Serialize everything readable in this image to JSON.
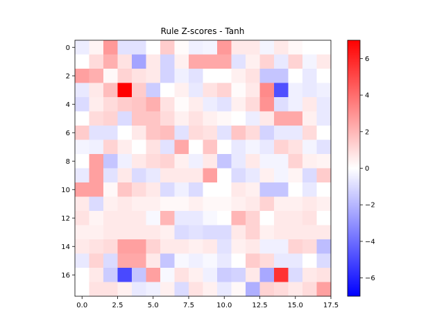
{
  "chart_data": {
    "type": "heatmap",
    "title": "Rule Z-scores - Tanh",
    "xlabel": "",
    "ylabel": "",
    "x_ticks": [
      "0.0",
      "2.5",
      "5.0",
      "7.5",
      "10.0",
      "12.5",
      "15.0",
      "17.5"
    ],
    "y_ticks": [
      "0",
      "2",
      "4",
      "6",
      "8",
      "10",
      "12",
      "14",
      "16"
    ],
    "colorbar_ticks": [
      "−6",
      "−4",
      "−2",
      "0",
      "2",
      "4",
      "6"
    ],
    "colorbar_range": [
      -7,
      7
    ],
    "colormap": "bwr",
    "grid": false,
    "colors": {
      "low": "#0000ff",
      "mid": "#ffffff",
      "high": "#ff0000"
    },
    "values": [
      [
        -0.5,
        0.3,
        2.8,
        -0.8,
        -0.8,
        0.0,
        1.4,
        0.1,
        -0.4,
        -0.3,
        2.8,
        0.6,
        0.6,
        -0.3,
        0.6,
        0.2,
        0.0,
        0.0
      ],
      [
        0.0,
        1.0,
        2.2,
        0.8,
        -2.5,
        0.6,
        -1.2,
        0.4,
        2.4,
        2.4,
        2.4,
        -0.8,
        0.4,
        1.2,
        -0.6,
        1.2,
        -0.3,
        0.6
      ],
      [
        2.6,
        2.2,
        0.2,
        1.2,
        0.8,
        0.6,
        -1.2,
        -0.4,
        -0.8,
        0.0,
        0.0,
        0.4,
        0.8,
        -1.6,
        -1.6,
        0.0,
        -0.6,
        0.0
      ],
      [
        -0.6,
        0.6,
        1.8,
        7.0,
        1.4,
        -1.4,
        0.0,
        0.4,
        -0.6,
        0.8,
        1.2,
        0.1,
        0.6,
        3.2,
        -4.8,
        -0.4,
        -0.6,
        -0.4
      ],
      [
        -1.0,
        0.5,
        1.0,
        1.4,
        1.6,
        2.2,
        0.8,
        0.1,
        0.5,
        -0.5,
        -0.8,
        0.4,
        1.0,
        3.0,
        -0.9,
        -0.4,
        0.6,
        -0.6
      ],
      [
        0.0,
        1.0,
        1.2,
        -1.0,
        1.6,
        1.6,
        1.0,
        0.4,
        0.8,
        0.4,
        0.2,
        0.0,
        -0.5,
        0.6,
        2.4,
        2.4,
        0.4,
        -0.6
      ],
      [
        1.4,
        -0.8,
        -0.8,
        0.0,
        0.6,
        1.6,
        1.8,
        -0.8,
        1.0,
        0.8,
        -0.8,
        1.6,
        1.0,
        -1.2,
        -0.6,
        -0.6,
        1.0,
        0.0
      ],
      [
        -0.3,
        -0.4,
        1.2,
        0.5,
        0.0,
        0.8,
        -0.8,
        2.4,
        0.0,
        1.6,
        0.0,
        -0.6,
        -0.3,
        -0.6,
        1.2,
        0.8,
        -0.3,
        -0.8
      ],
      [
        0.0,
        2.6,
        -1.6,
        -0.4,
        0.6,
        1.0,
        1.2,
        0.4,
        -0.4,
        0.6,
        -1.6,
        -0.6,
        0.6,
        -0.3,
        -0.3,
        1.2,
        0.4,
        0.3
      ],
      [
        -0.6,
        2.6,
        -0.8,
        0.6,
        -1.0,
        -0.6,
        0.6,
        0.6,
        0.6,
        2.6,
        0.0,
        -1.0,
        -0.6,
        0.4,
        -0.3,
        0.3,
        -1.0,
        1.4
      ],
      [
        2.6,
        2.6,
        0.2,
        1.6,
        1.0,
        0.6,
        -1.0,
        -0.4,
        -1.0,
        0.0,
        0.0,
        0.6,
        0.4,
        -1.6,
        -1.6,
        0.0,
        -0.6,
        0.0
      ],
      [
        0.6,
        -1.0,
        0.4,
        0.6,
        0.4,
        0.4,
        0.2,
        0.2,
        0.4,
        0.2,
        0.2,
        0.4,
        0.6,
        1.2,
        0.4,
        0.4,
        0.6,
        0.4
      ],
      [
        0.8,
        0.3,
        0.6,
        0.6,
        0.6,
        -0.2,
        2.0,
        -0.6,
        -0.6,
        -0.2,
        0.0,
        2.0,
        1.2,
        0.0,
        0.6,
        0.6,
        0.8,
        0.0
      ],
      [
        0.4,
        0.4,
        0.6,
        0.6,
        0.6,
        0.6,
        0.4,
        -1.0,
        -0.8,
        -1.0,
        -1.0,
        0.6,
        1.2,
        0.4,
        0.6,
        0.6,
        0.6,
        0.6
      ],
      [
        0.6,
        0.8,
        1.0,
        2.6,
        2.6,
        1.2,
        0.6,
        0.6,
        0.4,
        0.6,
        -0.8,
        0.4,
        0.6,
        -0.4,
        -0.4,
        1.2,
        1.0,
        -1.8
      ],
      [
        -0.6,
        1.2,
        -1.0,
        2.4,
        2.4,
        0.6,
        -1.6,
        -0.2,
        -0.4,
        -0.2,
        -0.6,
        0.0,
        1.4,
        1.0,
        -0.6,
        -0.6,
        0.0,
        -1.0
      ],
      [
        0.0,
        0.6,
        -1.4,
        -5.0,
        -1.6,
        2.6,
        -0.2,
        0.8,
        0.4,
        -0.4,
        -1.4,
        -1.2,
        0.6,
        -2.4,
        5.6,
        -1.0,
        0.6,
        0.8
      ],
      [
        0.0,
        0.8,
        0.8,
        0.4,
        -0.6,
        -0.4,
        0.4,
        -1.0,
        0.8,
        0.4,
        -0.6,
        0.2,
        -2.2,
        1.2,
        1.0,
        0.6,
        1.0,
        2.6
      ]
    ]
  }
}
